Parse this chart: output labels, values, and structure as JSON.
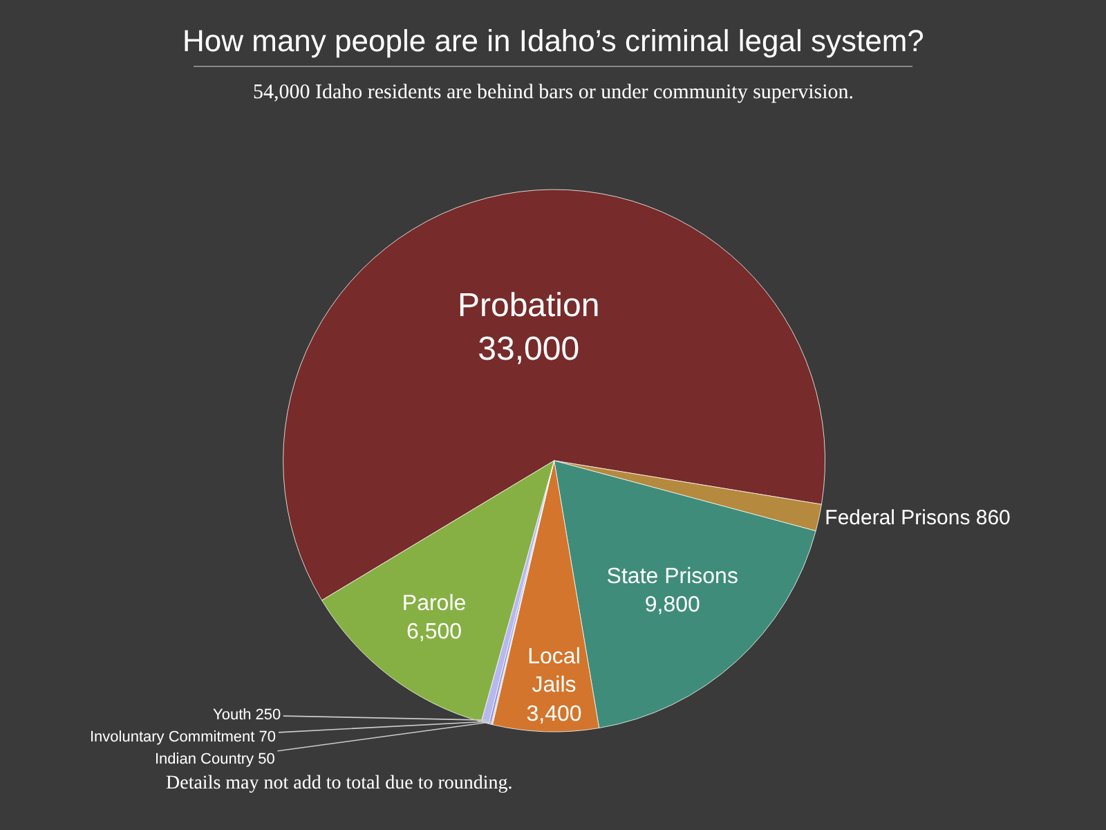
{
  "chart_data": {
    "type": "pie",
    "title": "How many people are in Idaho’s criminal legal system?",
    "subtitle": "54,000 Idaho residents are behind bars or under community supervision.",
    "categories": [
      "Probation",
      "Federal Prisons",
      "State Prisons",
      "Local Jails",
      "Indian Country",
      "Involuntary Commitment",
      "Youth",
      "Parole"
    ],
    "values": [
      33000,
      860,
      9800,
      3400,
      50,
      70,
      250,
      6500
    ],
    "value_labels": [
      "33,000",
      "860",
      "9,800",
      "3,400",
      "50",
      "70",
      "250",
      "6,500"
    ],
    "colors": [
      "#772b2b",
      "#b5893e",
      "#3f8c7a",
      "#d3752c",
      "#d8d8d8",
      "#8c8cd8",
      "#b8b8f0",
      "#86b043"
    ],
    "annotations": [
      "Details may not add to total due to rounding."
    ]
  }
}
